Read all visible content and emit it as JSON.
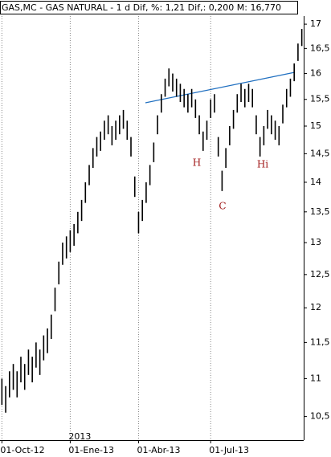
{
  "chart_data": {
    "type": "hilo",
    "header": "GAS,MC - GAS NATURAL -  1 d Dif, %: 1,21 Dif,: 0,200 M: 16,770",
    "log_scale": true,
    "color": "#000000",
    "categories": [
      "01-Oct-12",
      null,
      null,
      null,
      null,
      null,
      null,
      null,
      null,
      null,
      null,
      null,
      null,
      null,
      null,
      null,
      null,
      null,
      "01-Ene-13",
      null,
      null,
      null,
      null,
      null,
      null,
      null,
      null,
      null,
      null,
      null,
      null,
      null,
      null,
      null,
      null,
      null,
      "01-Abr-13",
      null,
      null,
      null,
      null,
      null,
      null,
      null,
      null,
      null,
      null,
      null,
      null,
      null,
      null,
      null,
      null,
      null,
      null,
      "01-Jul-13",
      null,
      null,
      null,
      null,
      null,
      null,
      null,
      null,
      null,
      null,
      null,
      null,
      null,
      null,
      null,
      null,
      null,
      null,
      null,
      null,
      null,
      null,
      null,
      null
    ],
    "year_label": "2013",
    "high": [
      11.0,
      10.9,
      11.1,
      11.2,
      11.1,
      11.3,
      11.2,
      11.4,
      11.3,
      11.5,
      11.4,
      11.6,
      11.7,
      11.9,
      12.3,
      12.7,
      13.0,
      13.1,
      13.2,
      13.3,
      13.5,
      13.7,
      14.0,
      14.3,
      14.6,
      14.8,
      14.9,
      15.1,
      15.2,
      15.0,
      15.1,
      15.2,
      15.3,
      15.1,
      14.8,
      14.1,
      13.5,
      13.7,
      14.0,
      14.3,
      14.7,
      15.2,
      15.6,
      15.9,
      16.1,
      16.0,
      15.9,
      15.8,
      15.7,
      15.6,
      15.7,
      15.5,
      15.2,
      14.9,
      15.1,
      15.5,
      15.6,
      14.8,
      14.2,
      14.6,
      15.0,
      15.3,
      15.6,
      15.8,
      15.7,
      15.8,
      15.7,
      15.2,
      14.8,
      15.0,
      15.3,
      15.2,
      15.1,
      15.0,
      15.4,
      15.7,
      15.9,
      16.2,
      16.6,
      16.9
    ],
    "low": [
      10.65,
      10.55,
      10.75,
      10.85,
      10.75,
      10.95,
      10.85,
      11.05,
      10.95,
      11.15,
      11.05,
      11.25,
      11.35,
      11.55,
      11.95,
      12.35,
      12.65,
      12.75,
      12.85,
      12.95,
      13.15,
      13.35,
      13.65,
      13.95,
      14.25,
      14.45,
      14.55,
      14.75,
      14.85,
      14.65,
      14.75,
      14.85,
      14.95,
      14.75,
      14.45,
      13.75,
      13.15,
      13.35,
      13.65,
      13.95,
      14.35,
      14.85,
      15.25,
      15.55,
      15.75,
      15.65,
      15.55,
      15.45,
      15.35,
      15.25,
      15.35,
      15.15,
      14.85,
      14.55,
      14.75,
      15.15,
      15.25,
      14.45,
      13.85,
      14.25,
      14.65,
      14.95,
      15.25,
      15.45,
      15.35,
      15.45,
      15.35,
      14.85,
      14.45,
      14.65,
      14.95,
      14.85,
      14.75,
      14.65,
      15.05,
      15.35,
      15.55,
      15.85,
      16.25,
      16.55
    ],
    "ylim": [
      10.2,
      17.17
    ],
    "yticks": [
      {
        "value": 10.5,
        "label": "10,5"
      },
      11,
      {
        "value": 11.5,
        "label": "11,5"
      },
      12,
      {
        "value": 12.5,
        "label": "12,5"
      },
      13,
      {
        "value": 13.5,
        "label": "13,5"
      },
      14,
      {
        "value": 14.5,
        "label": "14,5"
      },
      15,
      {
        "value": 15.5,
        "label": "15,5"
      },
      16,
      {
        "value": 16.5,
        "label": "16,5"
      },
      17
    ],
    "annotations": [
      "H",
      "C",
      "Hi"
    ]
  }
}
